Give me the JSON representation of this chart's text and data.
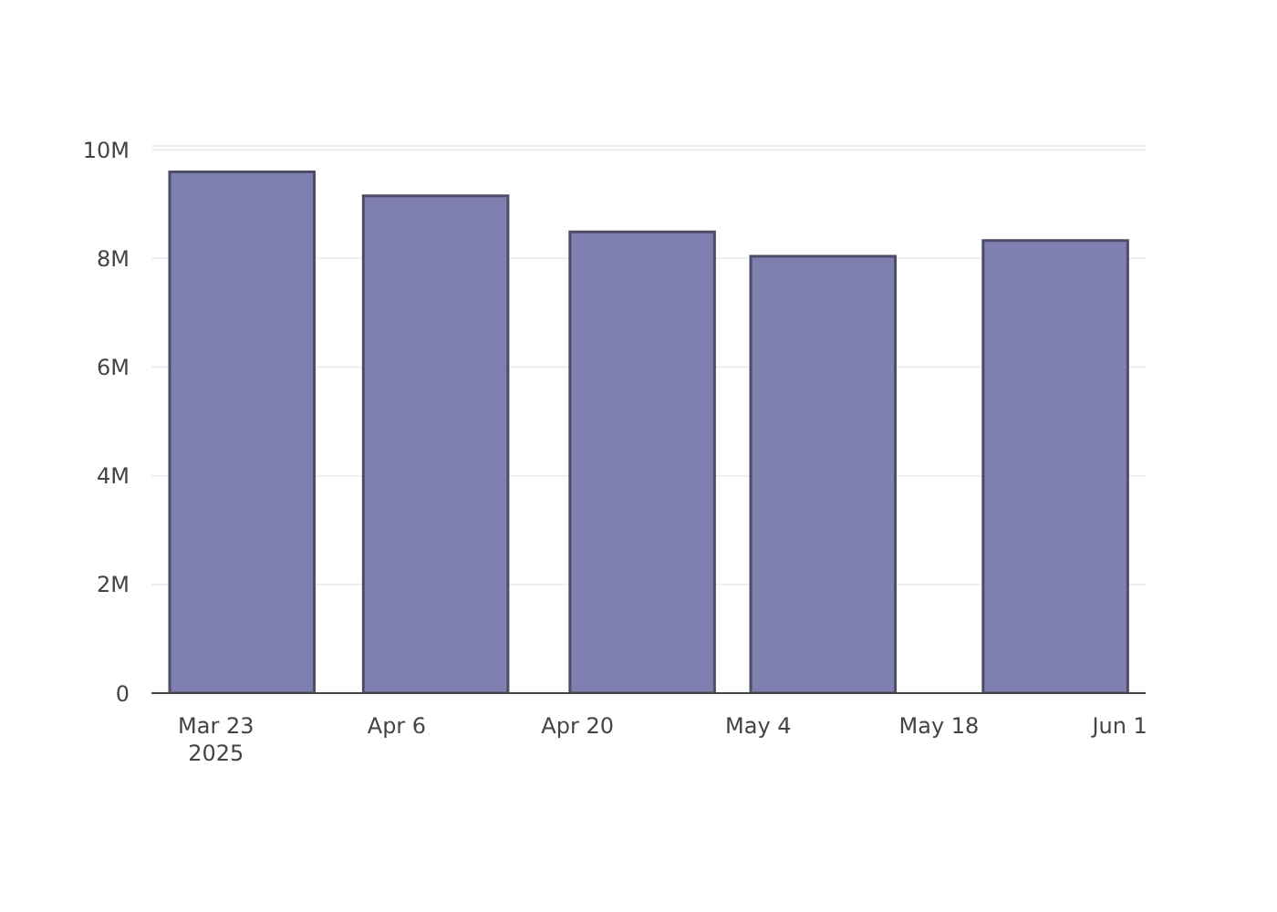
{
  "chart_data": {
    "type": "bar",
    "x": [
      "2025-03-25",
      "2025-04-09",
      "2025-04-25",
      "2025-05-09",
      "2025-05-27"
    ],
    "values": [
      9590000,
      9150000,
      8490000,
      8040000,
      8330000
    ],
    "color": "#8080b0",
    "xlim": [
      "2025-03-18",
      "2025-06-03"
    ],
    "xticks": [
      {
        "value": "2025-03-23",
        "label": "Mar 23\n2025"
      },
      {
        "value": "2025-04-06",
        "label": "Apr 6"
      },
      {
        "value": "2025-04-20",
        "label": "Apr 20"
      },
      {
        "value": "2025-05-04",
        "label": "May 4"
      },
      {
        "value": "2025-05-18",
        "label": "May 18"
      },
      {
        "value": "2025-06-01",
        "label": "Jun 1"
      }
    ],
    "ylim": [
      0,
      10070000
    ],
    "yticks": [
      0,
      {
        "value": 2000000,
        "label": "2M"
      },
      {
        "value": 4000000,
        "label": "4M"
      },
      {
        "value": 6000000,
        "label": "6M"
      },
      {
        "value": 8000000,
        "label": "8M"
      },
      {
        "value": 10000000,
        "label": "10M"
      }
    ],
    "grid": "y",
    "legend": false
  }
}
